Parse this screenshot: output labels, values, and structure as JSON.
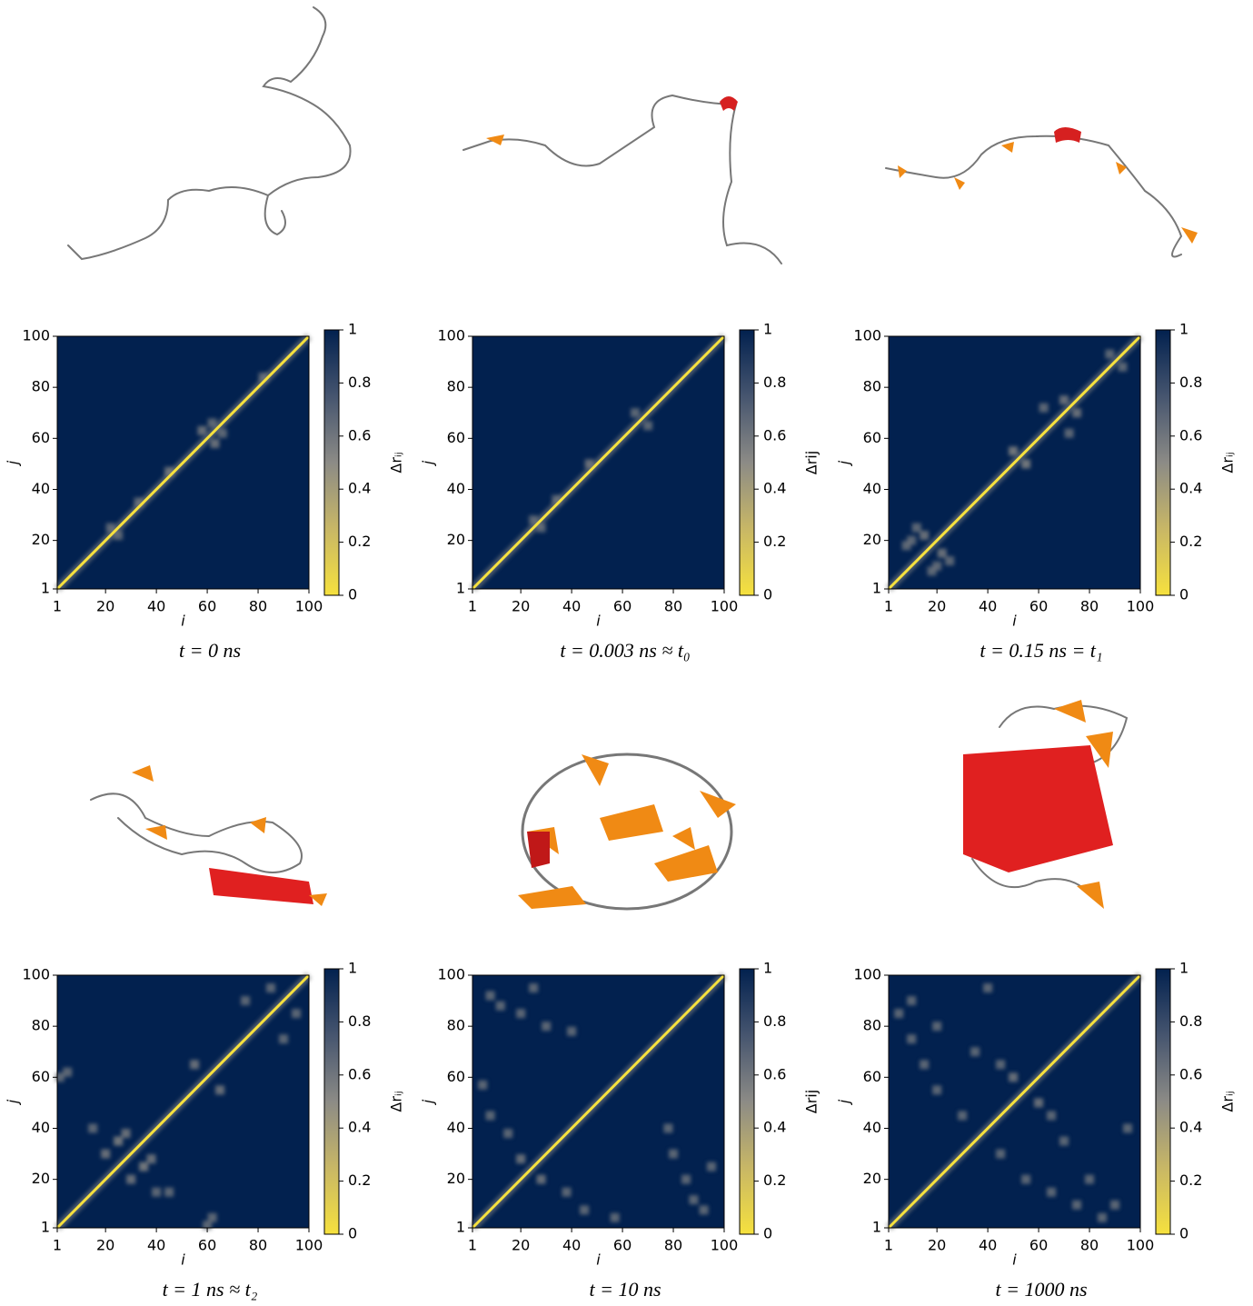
{
  "chart_data": [
    {
      "type": "heatmap",
      "title": "t = 0 ns",
      "xlabel": "i",
      "ylabel": "j",
      "colorbar_label": "Δrᵢⱼ",
      "xlim": [
        1,
        100
      ],
      "ylim": [
        1,
        100
      ],
      "xticks": [
        1,
        20,
        40,
        60,
        80,
        100
      ],
      "yticks": [
        1,
        20,
        40,
        60,
        80,
        100
      ],
      "clim": [
        0,
        1
      ],
      "cticks": [
        0,
        0.2,
        0.4,
        0.6,
        0.8,
        1
      ],
      "diagonal": {
        "x": [
          1,
          100
        ],
        "y": [
          1,
          100
        ],
        "value": 0
      },
      "x": [
        22,
        25,
        45,
        58,
        63,
        62,
        66,
        33,
        82
      ],
      "y": [
        25,
        22,
        47,
        63,
        58,
        66,
        62,
        35,
        84
      ],
      "values": [
        0.6,
        0.6,
        0.55,
        0.55,
        0.55,
        0.6,
        0.6,
        0.6,
        0.6
      ]
    },
    {
      "type": "heatmap",
      "title": "t = 0.003 ns ≈ t₀",
      "xlabel": "i",
      "ylabel": "j",
      "colorbar_label": "Δrij",
      "xlim": [
        1,
        100
      ],
      "ylim": [
        1,
        100
      ],
      "xticks": [
        1,
        20,
        40,
        60,
        80,
        100
      ],
      "yticks": [
        1,
        20,
        40,
        60,
        80,
        100
      ],
      "clim": [
        0,
        1
      ],
      "cticks": [
        0,
        0.2,
        0.4,
        0.6,
        0.8,
        1
      ],
      "diagonal": {
        "x": [
          1,
          100
        ],
        "y": [
          1,
          100
        ],
        "value": 0
      },
      "x": [
        25,
        28,
        47,
        65,
        70,
        34
      ],
      "y": [
        28,
        25,
        50,
        70,
        65,
        36
      ],
      "values": [
        0.6,
        0.6,
        0.55,
        0.6,
        0.6,
        0.6
      ]
    },
    {
      "type": "heatmap",
      "title": "t = 0.15 ns = t₁",
      "xlabel": "i",
      "ylabel": "j",
      "colorbar_label": "Δrᵢⱼ",
      "xlim": [
        1,
        100
      ],
      "ylim": [
        1,
        100
      ],
      "xticks": [
        1,
        20,
        40,
        60,
        80,
        100
      ],
      "yticks": [
        1,
        20,
        40,
        60,
        80,
        100
      ],
      "clim": [
        0,
        1
      ],
      "cticks": [
        0,
        0.2,
        0.4,
        0.6,
        0.8,
        1
      ],
      "diagonal": {
        "x": [
          1,
          100
        ],
        "y": [
          1,
          100
        ],
        "value": 0
      },
      "x": [
        10,
        20,
        15,
        22,
        12,
        25,
        70,
        75,
        72,
        62,
        88,
        93,
        50,
        55,
        18,
        8
      ],
      "y": [
        20,
        10,
        22,
        15,
        25,
        12,
        75,
        70,
        62,
        72,
        93,
        88,
        55,
        50,
        8,
        18
      ],
      "values": [
        0.6,
        0.6,
        0.55,
        0.55,
        0.6,
        0.6,
        0.55,
        0.55,
        0.6,
        0.6,
        0.6,
        0.6,
        0.5,
        0.5,
        0.6,
        0.6
      ]
    },
    {
      "type": "heatmap",
      "title": "t = 1 ns ≈ t₂",
      "xlabel": "i",
      "ylabel": "j",
      "colorbar_label": "Δrᵢⱼ",
      "xlim": [
        1,
        100
      ],
      "ylim": [
        1,
        100
      ],
      "xticks": [
        1,
        20,
        40,
        60,
        80,
        100
      ],
      "yticks": [
        1,
        20,
        40,
        60,
        80,
        100
      ],
      "clim": [
        0,
        1
      ],
      "cticks": [
        0,
        0.2,
        0.4,
        0.6,
        0.8,
        1
      ],
      "diagonal": {
        "x": [
          1,
          100
        ],
        "y": [
          1,
          100
        ],
        "value": 0
      },
      "x": [
        5,
        62,
        25,
        35,
        20,
        30,
        55,
        65,
        85,
        95,
        40,
        15,
        45,
        60,
        2,
        75,
        90,
        28,
        38
      ],
      "y": [
        62,
        5,
        35,
        25,
        30,
        20,
        65,
        55,
        95,
        85,
        15,
        40,
        15,
        2,
        60,
        90,
        75,
        38,
        28
      ],
      "values": [
        0.6,
        0.6,
        0.5,
        0.5,
        0.55,
        0.55,
        0.55,
        0.55,
        0.6,
        0.6,
        0.6,
        0.6,
        0.6,
        0.6,
        0.6,
        0.6,
        0.6,
        0.55,
        0.55
      ]
    },
    {
      "type": "heatmap",
      "title": "t = 10 ns",
      "xlabel": "i",
      "ylabel": "j",
      "colorbar_label": "Δrij",
      "xlim": [
        1,
        100
      ],
      "ylim": [
        1,
        100
      ],
      "xticks": [
        1,
        20,
        40,
        60,
        80,
        100
      ],
      "yticks": [
        1,
        20,
        40,
        60,
        80,
        100
      ],
      "clim": [
        0,
        1
      ],
      "cticks": [
        0,
        0.2,
        0.4,
        0.6,
        0.8,
        1
      ],
      "diagonal": {
        "x": [
          1,
          100
        ],
        "y": [
          1,
          100
        ],
        "value": 0
      },
      "x": [
        8,
        92,
        12,
        88,
        8,
        45,
        5,
        57,
        20,
        28,
        40,
        78,
        38,
        15,
        80,
        30,
        85,
        20,
        95,
        25
      ],
      "y": [
        92,
        8,
        88,
        12,
        45,
        8,
        57,
        5,
        28,
        20,
        78,
        40,
        15,
        38,
        30,
        80,
        20,
        85,
        25,
        95
      ],
      "values": [
        0.6,
        0.6,
        0.6,
        0.6,
        0.6,
        0.6,
        0.6,
        0.6,
        0.55,
        0.55,
        0.6,
        0.6,
        0.6,
        0.6,
        0.6,
        0.6,
        0.6,
        0.6,
        0.6,
        0.6
      ]
    },
    {
      "type": "heatmap",
      "title": "t = 1000 ns",
      "xlabel": "i",
      "ylabel": "j",
      "colorbar_label": "Δrᵢⱼ",
      "xlim": [
        1,
        100
      ],
      "ylim": [
        1,
        100
      ],
      "xticks": [
        1,
        20,
        40,
        60,
        80,
        100
      ],
      "yticks": [
        1,
        20,
        40,
        60,
        80,
        100
      ],
      "clim": [
        0,
        1
      ],
      "cticks": [
        0,
        0.2,
        0.4,
        0.6,
        0.8,
        1
      ],
      "diagonal": {
        "x": [
          1,
          100
        ],
        "y": [
          1,
          100
        ],
        "value": 0
      },
      "x": [
        5,
        85,
        10,
        75,
        15,
        65,
        20,
        55,
        30,
        45,
        50,
        60,
        65,
        45,
        70,
        35,
        80,
        20,
        90,
        10,
        95,
        40
      ],
      "y": [
        85,
        5,
        75,
        10,
        65,
        15,
        55,
        20,
        45,
        30,
        60,
        50,
        45,
        65,
        35,
        70,
        20,
        80,
        10,
        90,
        40,
        95
      ],
      "values": [
        0.6,
        0.6,
        0.6,
        0.6,
        0.6,
        0.6,
        0.6,
        0.6,
        0.6,
        0.6,
        0.55,
        0.55,
        0.6,
        0.6,
        0.6,
        0.6,
        0.6,
        0.6,
        0.6,
        0.6,
        0.6,
        0.6
      ]
    }
  ]
}
